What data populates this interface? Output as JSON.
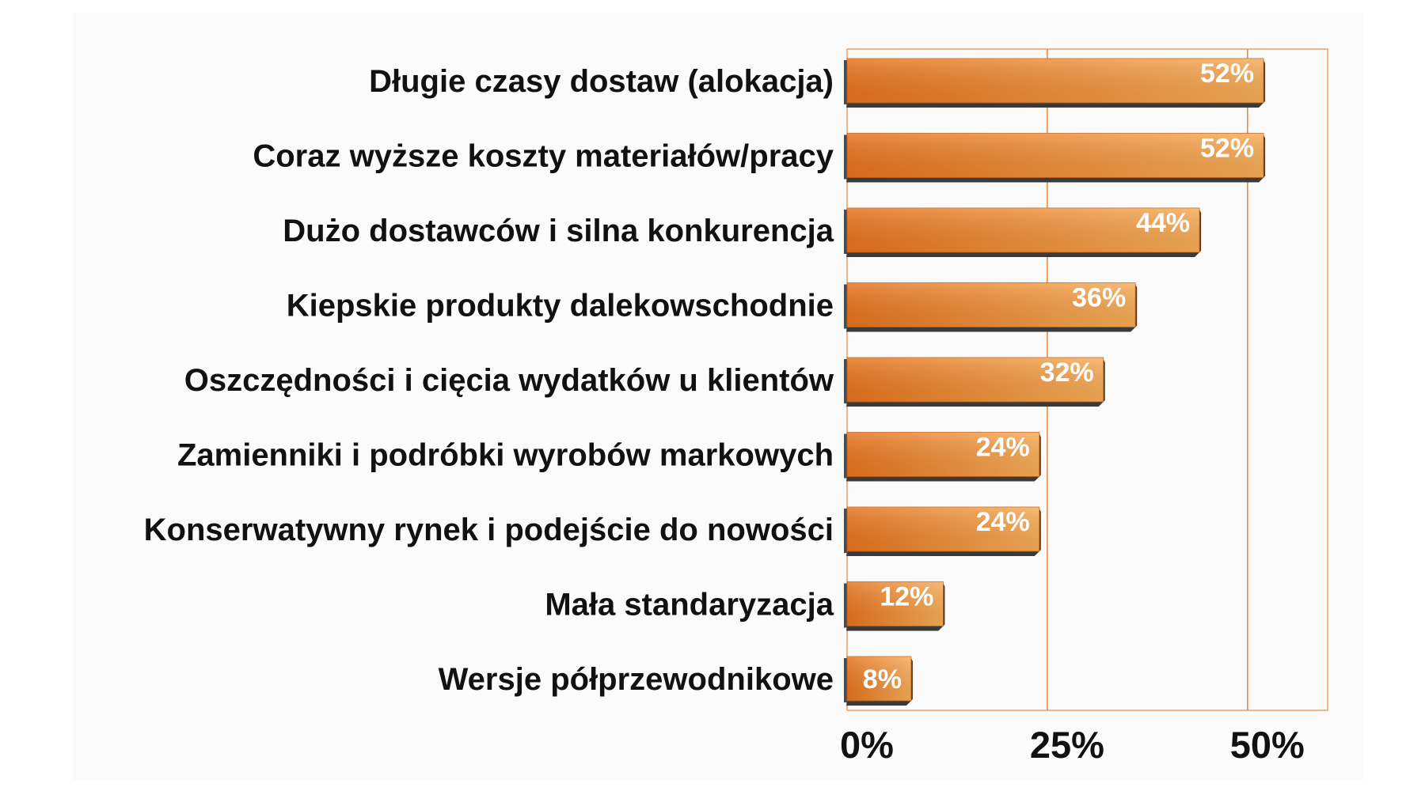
{
  "chart_data": {
    "type": "bar",
    "orientation": "horizontal",
    "categories": [
      "Długie czasy dostaw (alokacja)",
      "Coraz wyższe koszty materiałów/pracy",
      "Dużo dostawców i silna konkurencja",
      "Kiepskie produkty dalekowschodnie",
      "Oszczędności i cięcia wydatków u klientów",
      "Zamienniki i podróbki wyrobów markowych",
      "Konserwatywny rynek i podejście do nowości",
      "Mała standaryzacja",
      "Wersje półprzewodnikowe"
    ],
    "values": [
      52,
      52,
      44,
      36,
      32,
      24,
      24,
      12,
      8
    ],
    "value_labels": [
      "52%",
      "52%",
      "44%",
      "36%",
      "32%",
      "24%",
      "24%",
      "12%",
      "8%"
    ],
    "xticks": [
      "0%",
      "25%",
      "50%"
    ],
    "xtick_values": [
      0,
      25,
      50
    ],
    "xlim": [
      0,
      60
    ],
    "grid": true,
    "colors": {
      "bar_light": "#f3a451",
      "bar_dark": "#e4711c",
      "bar_shadow": "#3a3a3a",
      "frame": "#f0a060",
      "gridline": "#e8843a"
    }
  }
}
